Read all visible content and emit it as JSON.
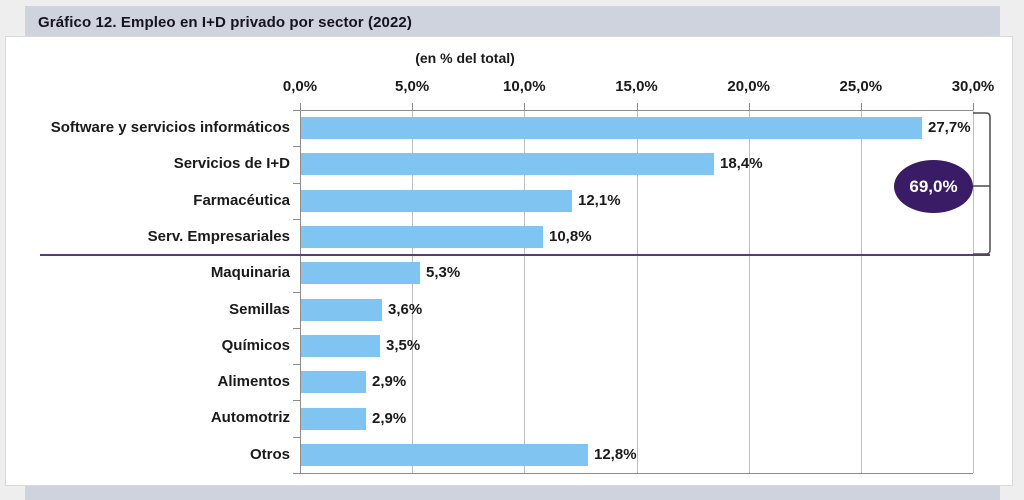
{
  "header": {
    "title": "Gráfico 12.  Empleo en I+D privado por sector (2022)"
  },
  "chart_data": {
    "type": "bar",
    "orientation": "horizontal",
    "title": "Gráfico 12. Empleo en I+D privado por sector (2022)",
    "subtitle": "(en % del total)",
    "categories": [
      "Software y servicios informáticos",
      "Servicios de I+D",
      "Farmacéutica",
      "Serv. Empresariales",
      "Maquinaria",
      "Semillas",
      "Químicos",
      "Alimentos",
      "Automotriz",
      "Otros"
    ],
    "values": [
      27.7,
      18.4,
      12.1,
      10.8,
      5.3,
      3.6,
      3.5,
      2.9,
      2.9,
      12.8
    ],
    "value_labels": [
      "27,7%",
      "18,4%",
      "12,1%",
      "10,8%",
      "5,3%",
      "3,6%",
      "3,5%",
      "2,9%",
      "2,9%",
      "12,8%"
    ],
    "x_tick_labels": [
      "0,0%",
      "5,0%",
      "10,0%",
      "15,0%",
      "20,0%",
      "25,0%",
      "30,0%"
    ],
    "x_tick_values": [
      0,
      5,
      10,
      15,
      20,
      25,
      30
    ],
    "xlim": [
      0,
      30
    ],
    "grid": true,
    "legend": "none",
    "annotation": {
      "badge_label": "69,0%",
      "grouped_categories": [
        "Software y servicios informáticos",
        "Servicios de I+D",
        "Farmacéutica",
        "Serv. Empresariales"
      ]
    },
    "colors": {
      "bar": "#80c5f2",
      "badge": "#3a1c66",
      "badge_text": "#ffffff",
      "separator_line": "#5b3a78",
      "header_band": "#cfd3de",
      "grid": "#bdbdbd",
      "axis": "#8c8c8c",
      "text": "#1a1a1a"
    }
  }
}
